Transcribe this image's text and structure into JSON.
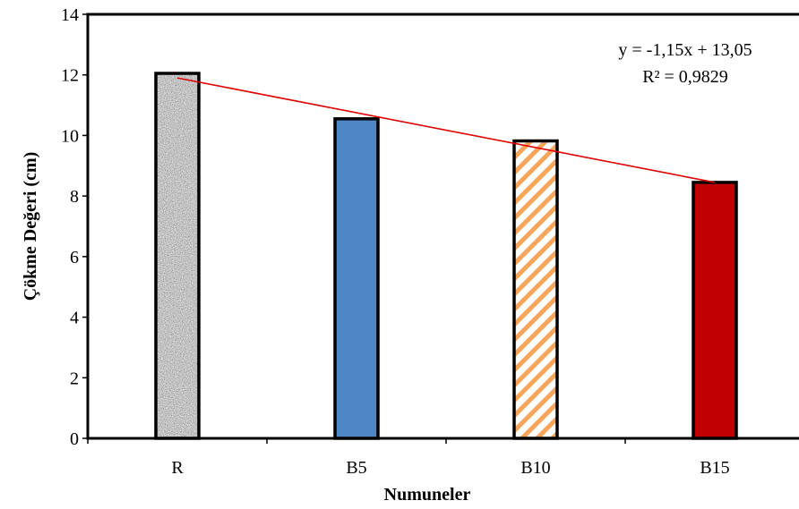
{
  "chart_data": {
    "type": "bar",
    "categories": [
      "R",
      "B5",
      "B10",
      "B15"
    ],
    "values": [
      12.05,
      10.55,
      9.82,
      8.45
    ],
    "bar_styles": [
      "gray-granite",
      "solid-blue",
      "orange-diagonal-stripes",
      "solid-red"
    ],
    "colors": {
      "granite_base": "#c8c8c8",
      "granite_dark": "#6e6e6e",
      "blue": "#4f86c6",
      "stripe_orange": "#f7a55a",
      "red": "#c00000",
      "trendline": "#e00000",
      "bar_border": "#000000"
    },
    "title": "",
    "xlabel": "Numuneler",
    "ylabel": "Çökme Değeri (cm)",
    "ylim": [
      0,
      14
    ],
    "yticks": [
      0,
      2,
      4,
      6,
      8,
      10,
      12,
      14
    ],
    "grid": false,
    "legend": "none",
    "trendline": {
      "type": "linear",
      "slope": -1.15,
      "intercept": 13.05,
      "equation_text": "y = -1,15x + 13,05",
      "r2_text": "R² = 0,9829"
    }
  }
}
